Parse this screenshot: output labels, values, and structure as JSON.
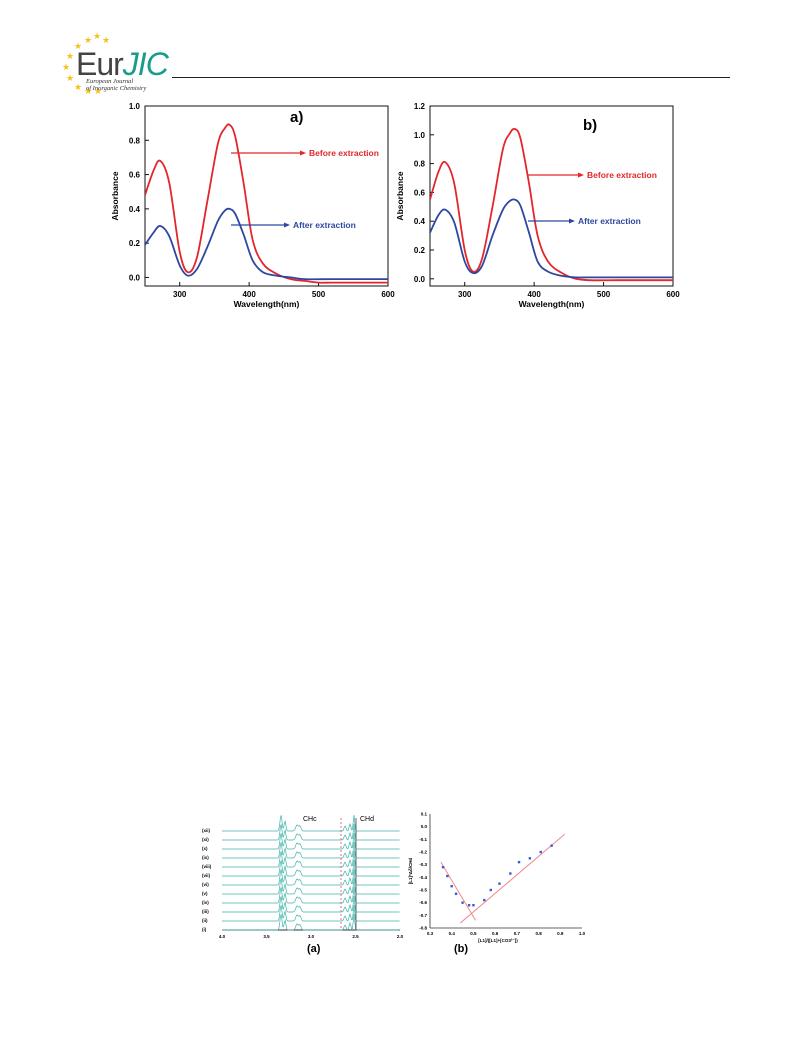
{
  "journal": {
    "logo_text_a": "Eur",
    "logo_text_b": "JIC",
    "logo_sub_line1": "European Journal",
    "logo_sub_line2": "of Inorganic Chemistry"
  },
  "colors": {
    "before": "#e3262b",
    "after": "#2e47a0",
    "teal": "#3fb3aa",
    "fit": "#f08a8a",
    "points": "#3b5bd6"
  },
  "chart_data": [
    {
      "type": "line",
      "panel_label": "a)",
      "xlabel": "Wavelength(nm)",
      "ylabel": "Absorbance",
      "xlim": [
        250,
        600
      ],
      "ylim": [
        -0.05,
        1.0
      ],
      "xticks": [
        300,
        400,
        500,
        600
      ],
      "yticks": [
        0.0,
        0.2,
        0.4,
        0.6,
        0.8,
        1.0
      ],
      "ytick_labels": [
        "0.0",
        "0.2",
        "0.4",
        "0.6",
        "0.8",
        "1.0"
      ],
      "series": [
        {
          "name": "Before extraction",
          "x": [
            250,
            262,
            272,
            285,
            300,
            312,
            325,
            340,
            355,
            365,
            372,
            380,
            392,
            405,
            420,
            440,
            460,
            480,
            500,
            520,
            560,
            600
          ],
          "y": [
            0.48,
            0.62,
            0.68,
            0.55,
            0.15,
            0.03,
            0.12,
            0.45,
            0.78,
            0.87,
            0.89,
            0.82,
            0.55,
            0.22,
            0.08,
            0.02,
            -0.01,
            -0.02,
            -0.03,
            -0.03,
            -0.03,
            -0.03
          ]
        },
        {
          "name": "After extraction",
          "x": [
            250,
            262,
            272,
            285,
            300,
            312,
            325,
            340,
            355,
            365,
            372,
            380,
            392,
            405,
            420,
            440,
            460,
            480,
            520,
            560,
            600
          ],
          "y": [
            0.19,
            0.26,
            0.3,
            0.24,
            0.07,
            0.01,
            0.05,
            0.18,
            0.33,
            0.39,
            0.4,
            0.37,
            0.25,
            0.1,
            0.03,
            0.01,
            0.0,
            -0.01,
            -0.01,
            -0.01,
            -0.01
          ]
        }
      ]
    },
    {
      "type": "line",
      "panel_label": "b)",
      "xlabel": "Wavelength(nm)",
      "ylabel": "Absorbance",
      "xlim": [
        250,
        600
      ],
      "ylim": [
        -0.05,
        1.2
      ],
      "xticks": [
        300,
        400,
        500,
        600
      ],
      "yticks": [
        0.0,
        0.2,
        0.4,
        0.6,
        0.8,
        1.0,
        1.2
      ],
      "ytick_labels": [
        "0.0",
        "0.2",
        "0.4",
        "0.6",
        "0.8",
        "1.0",
        "1.2"
      ],
      "series": [
        {
          "name": "Before extraction",
          "x": [
            250,
            262,
            272,
            285,
            300,
            312,
            325,
            340,
            355,
            365,
            372,
            380,
            392,
            405,
            420,
            440,
            460,
            480,
            520,
            560,
            600
          ],
          "y": [
            0.55,
            0.74,
            0.81,
            0.66,
            0.2,
            0.05,
            0.14,
            0.5,
            0.9,
            1.01,
            1.04,
            0.98,
            0.68,
            0.3,
            0.12,
            0.04,
            0.0,
            -0.01,
            -0.01,
            -0.01,
            -0.01
          ]
        },
        {
          "name": "After extraction",
          "x": [
            250,
            262,
            272,
            285,
            300,
            312,
            325,
            340,
            355,
            365,
            372,
            380,
            392,
            405,
            420,
            440,
            460,
            480,
            520,
            560,
            600
          ],
          "y": [
            0.32,
            0.44,
            0.48,
            0.39,
            0.12,
            0.04,
            0.09,
            0.3,
            0.48,
            0.54,
            0.55,
            0.51,
            0.33,
            0.12,
            0.05,
            0.02,
            0.01,
            0.01,
            0.01,
            0.01,
            0.01
          ]
        }
      ]
    },
    {
      "type": "line",
      "panel_label": "(a)",
      "peak_labels": [
        "CHc",
        "CHd"
      ],
      "row_labels": [
        "(xii)",
        "(xi)",
        "(x)",
        "(ix)",
        "(viii)",
        "(vii)",
        "(vi)",
        "(v)",
        "(iv)",
        "(iii)",
        "(ii)",
        "(i)"
      ],
      "xticks": [
        "4.0",
        "3.5",
        "3.0",
        "2.5",
        "2.0"
      ]
    },
    {
      "type": "scatter",
      "panel_label": "(b)",
      "xlabel": "[L1]/([L1]+[CO3²⁻])",
      "ylabel": "[L1]*Δδ/CHd",
      "xlim": [
        0.3,
        1.0
      ],
      "ylim": [
        -0.8,
        0.1
      ],
      "xticks": [
        "0.3",
        "0.4",
        "0.5",
        "0.6",
        "0.7",
        "0.8",
        "0.9",
        "1.0"
      ],
      "yticks": [
        "0.1",
        "0.0",
        "-0.1",
        "-0.2",
        "-0.3",
        "-0.4",
        "-0.5",
        "-0.6",
        "-0.7",
        "-0.8"
      ],
      "x": [
        0.36,
        0.38,
        0.4,
        0.42,
        0.45,
        0.48,
        0.5,
        0.55,
        0.58,
        0.62,
        0.67,
        0.71,
        0.76,
        0.81,
        0.86
      ],
      "y": [
        -0.32,
        -0.39,
        -0.47,
        -0.53,
        -0.6,
        -0.62,
        -0.62,
        -0.58,
        -0.5,
        -0.45,
        -0.37,
        -0.28,
        -0.25,
        -0.2,
        -0.15
      ],
      "fit_lines": [
        {
          "x": [
            0.35,
            0.51
          ],
          "y": [
            -0.28,
            -0.74
          ]
        },
        {
          "x": [
            0.44,
            0.92
          ],
          "y": [
            -0.76,
            -0.06
          ]
        }
      ]
    }
  ]
}
